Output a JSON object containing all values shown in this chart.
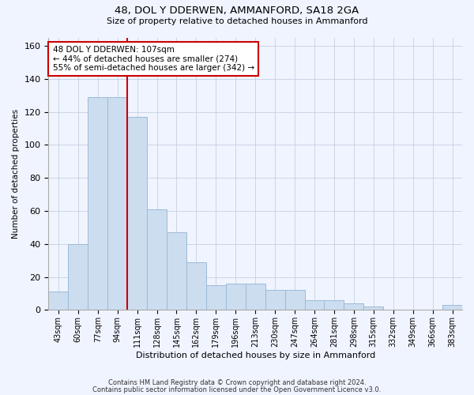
{
  "title1": "48, DOL Y DDERWEN, AMMANFORD, SA18 2GA",
  "title2": "Size of property relative to detached houses in Ammanford",
  "xlabel": "Distribution of detached houses by size in Ammanford",
  "ylabel": "Number of detached properties",
  "categories": [
    "43sqm",
    "60sqm",
    "77sqm",
    "94sqm",
    "111sqm",
    "128sqm",
    "145sqm",
    "162sqm",
    "179sqm",
    "196sqm",
    "213sqm",
    "230sqm",
    "247sqm",
    "264sqm",
    "281sqm",
    "298sqm",
    "315sqm",
    "332sqm",
    "349sqm",
    "366sqm",
    "383sqm"
  ],
  "values": [
    11,
    40,
    129,
    129,
    117,
    61,
    47,
    29,
    15,
    16,
    16,
    12,
    12,
    6,
    6,
    4,
    2,
    0,
    0,
    0,
    3
  ],
  "bar_color": "#ccddf0",
  "bar_edge_color": "#9bbad8",
  "vline_x": 3.5,
  "vline_color": "#cc0000",
  "annotation_text": "48 DOL Y DDERWEN: 107sqm\n← 44% of detached houses are smaller (274)\n55% of semi-detached houses are larger (342) →",
  "annotation_box_color": "white",
  "annotation_box_edge": "#cc0000",
  "ylim": [
    0,
    165
  ],
  "yticks": [
    0,
    20,
    40,
    60,
    80,
    100,
    120,
    140,
    160
  ],
  "footer1": "Contains HM Land Registry data © Crown copyright and database right 2024.",
  "footer2": "Contains public sector information licensed under the Open Government Licence v3.0.",
  "bg_color": "#f0f4ff"
}
